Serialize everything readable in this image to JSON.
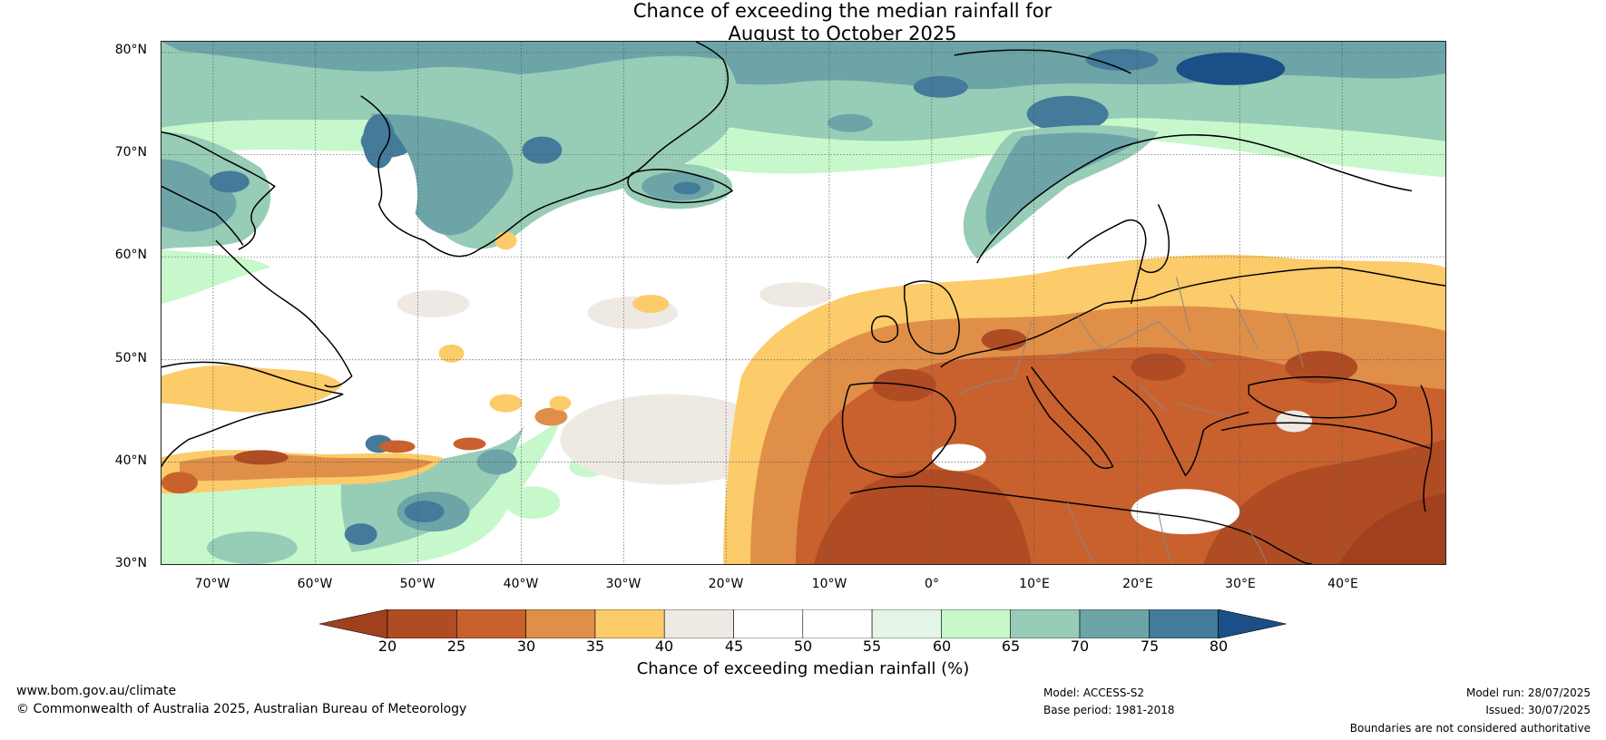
{
  "title": {
    "line1": "Chance of exceeding the median rainfall for",
    "line2": "August to October 2025"
  },
  "map": {
    "lat_labels": [
      "80°N",
      "70°N",
      "60°N",
      "50°N",
      "40°N",
      "30°N"
    ],
    "lon_labels": [
      "70°W",
      "60°W",
      "50°W",
      "40°W",
      "30°W",
      "20°W",
      "10°W",
      "0°",
      "10°E",
      "20°E",
      "30°E",
      "40°E"
    ],
    "lat_range": [
      30,
      81
    ],
    "lon_range": [
      -75,
      50
    ],
    "region": "North Atlantic and Europe",
    "dry_regions": [
      "Europe",
      "North Africa",
      "Middle East",
      "Eastern North America coast"
    ],
    "wet_regions": [
      "Greenland",
      "Arctic Ocean",
      "Scandinavia coast",
      "Iceland",
      "Central Atlantic 30-40°N"
    ]
  },
  "colorbar": {
    "ticks": [
      "20",
      "25",
      "30",
      "35",
      "40",
      "45",
      "50",
      "55",
      "60",
      "65",
      "70",
      "75",
      "80"
    ],
    "colors": [
      "#a0401e",
      "#b04c24",
      "#c8612e",
      "#e08f48",
      "#fccb6a",
      "#efe9e4",
      "#ffffff",
      "#ffffff",
      "#e6f6e6",
      "#c7f8cc",
      "#97ccb6",
      "#6da4a8",
      "#447a9a",
      "#1a4f88"
    ],
    "label": "Chance of exceeding median rainfall (%)"
  },
  "footer": {
    "url": "www.bom.gov.au/climate",
    "copyright": "© Commonwealth of Australia 2025, Australian Bureau of Meteorology",
    "model": "Model: ACCESS-S2",
    "base_period": "Base period: 1981-2018",
    "model_run": "Model run: 28/07/2025",
    "issued": "Issued: 30/07/2025",
    "disclaimer": "Boundaries are not considered authoritative"
  }
}
